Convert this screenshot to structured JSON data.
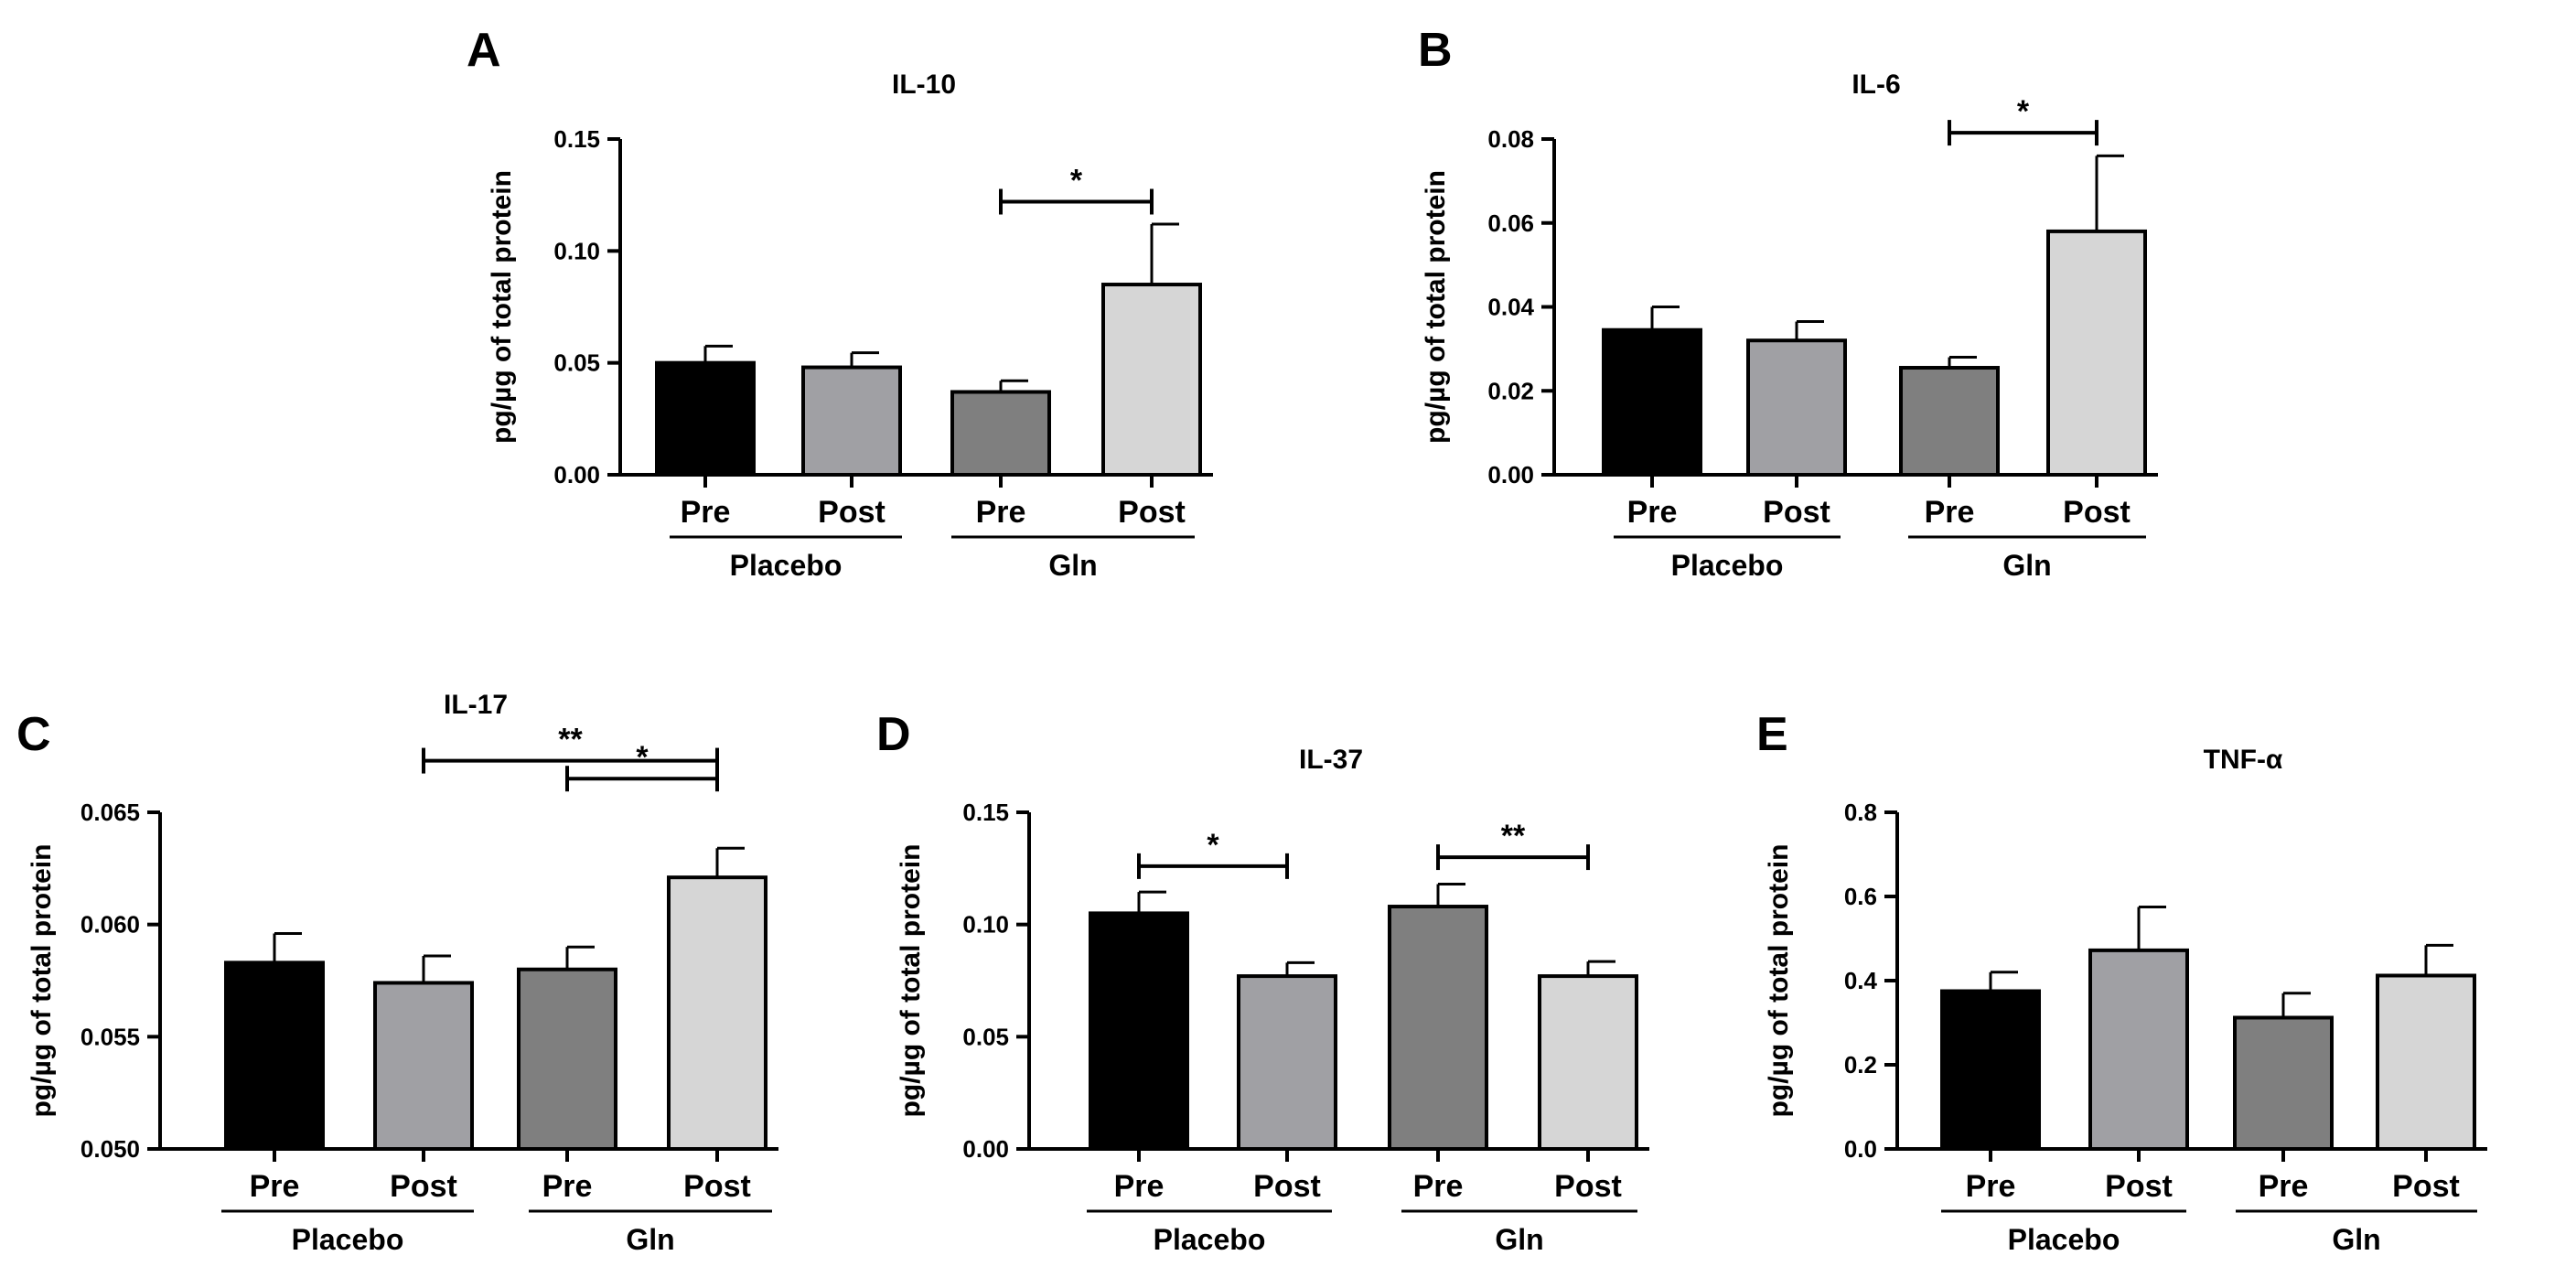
{
  "chart_data": [
    {
      "panel": "A",
      "type": "bar",
      "title": "IL-10",
      "ylabel": "pg/µg of total protein",
      "ylim": [
        0,
        0.15
      ],
      "ticks": [
        "0.00",
        "0.05",
        "0.10",
        "0.15"
      ],
      "categories": [
        "Pre",
        "Post",
        "Pre",
        "Post"
      ],
      "groups": [
        "Placebo",
        "Gln"
      ],
      "values": [
        0.05,
        0.048,
        0.037,
        0.085
      ],
      "errors": [
        0.0075,
        0.0065,
        0.005,
        0.027
      ],
      "colors": [
        "#000000",
        "#a0a0a4",
        "#7f7f7f",
        "#d6d6d6"
      ],
      "significance": [
        {
          "from": 2,
          "to": 3,
          "label": "*",
          "y": 0.122
        }
      ]
    },
    {
      "panel": "B",
      "type": "bar",
      "title": "IL-6",
      "ylabel": "pg/µg of total protein",
      "ylim": [
        0,
        0.08
      ],
      "ticks": [
        "0.00",
        "0.02",
        "0.04",
        "0.06",
        "0.08"
      ],
      "categories": [
        "Pre",
        "Post",
        "Pre",
        "Post"
      ],
      "groups": [
        "Placebo",
        "Gln"
      ],
      "values": [
        0.0345,
        0.032,
        0.0255,
        0.058
      ],
      "errors": [
        0.0055,
        0.0045,
        0.0025,
        0.018
      ],
      "colors": [
        "#000000",
        "#a0a0a4",
        "#7f7f7f",
        "#d6d6d6"
      ],
      "significance": [
        {
          "from": 2,
          "to": 3,
          "label": "*",
          "y": 0.0815
        }
      ]
    },
    {
      "panel": "C",
      "type": "bar",
      "title": "IL-17",
      "ylabel": "pg/µg of total protein",
      "ylim": [
        0.05,
        0.065
      ],
      "ticks": [
        "0.050",
        "0.055",
        "0.060",
        "0.065"
      ],
      "categories": [
        "Pre",
        "Post",
        "Pre",
        "Post"
      ],
      "groups": [
        "Placebo",
        "Gln"
      ],
      "values": [
        0.0583,
        0.0574,
        0.058,
        0.0621
      ],
      "errors": [
        0.0013,
        0.0012,
        0.001,
        0.0013
      ],
      "colors": [
        "#000000",
        "#a0a0a4",
        "#7f7f7f",
        "#d6d6d6"
      ],
      "significance": [
        {
          "from": 1,
          "to": 3,
          "label": "**",
          "y": 0.0673
        },
        {
          "from": 2,
          "to": 3,
          "label": "*",
          "y": 0.0665
        }
      ]
    },
    {
      "panel": "D",
      "type": "bar",
      "title": "IL-37",
      "ylabel": "pg/µg of total protein",
      "ylim": [
        0,
        0.15
      ],
      "ticks": [
        "0.00",
        "0.05",
        "0.10",
        "0.15"
      ],
      "categories": [
        "Pre",
        "Post",
        "Pre",
        "Post"
      ],
      "groups": [
        "Placebo",
        "Gln"
      ],
      "values": [
        0.105,
        0.077,
        0.108,
        0.077
      ],
      "errors": [
        0.0095,
        0.006,
        0.01,
        0.0065
      ],
      "colors": [
        "#000000",
        "#a0a0a4",
        "#7f7f7f",
        "#d6d6d6"
      ],
      "significance": [
        {
          "from": 0,
          "to": 1,
          "label": "*",
          "y": 0.126
        },
        {
          "from": 2,
          "to": 3,
          "label": "**",
          "y": 0.13
        }
      ]
    },
    {
      "panel": "E",
      "type": "bar",
      "title": "TNF-α",
      "ylabel": "pg/µg of total protein",
      "ylim": [
        0,
        0.8
      ],
      "ticks": [
        "0.0",
        "0.2",
        "0.4",
        "0.6",
        "0.8"
      ],
      "categories": [
        "Pre",
        "Post",
        "Pre",
        "Post"
      ],
      "groups": [
        "Placebo",
        "Gln"
      ],
      "values": [
        0.375,
        0.472,
        0.312,
        0.412
      ],
      "errors": [
        0.045,
        0.103,
        0.058,
        0.072
      ],
      "colors": [
        "#000000",
        "#a0a0a4",
        "#7f7f7f",
        "#d6d6d6"
      ],
      "significance": []
    }
  ]
}
